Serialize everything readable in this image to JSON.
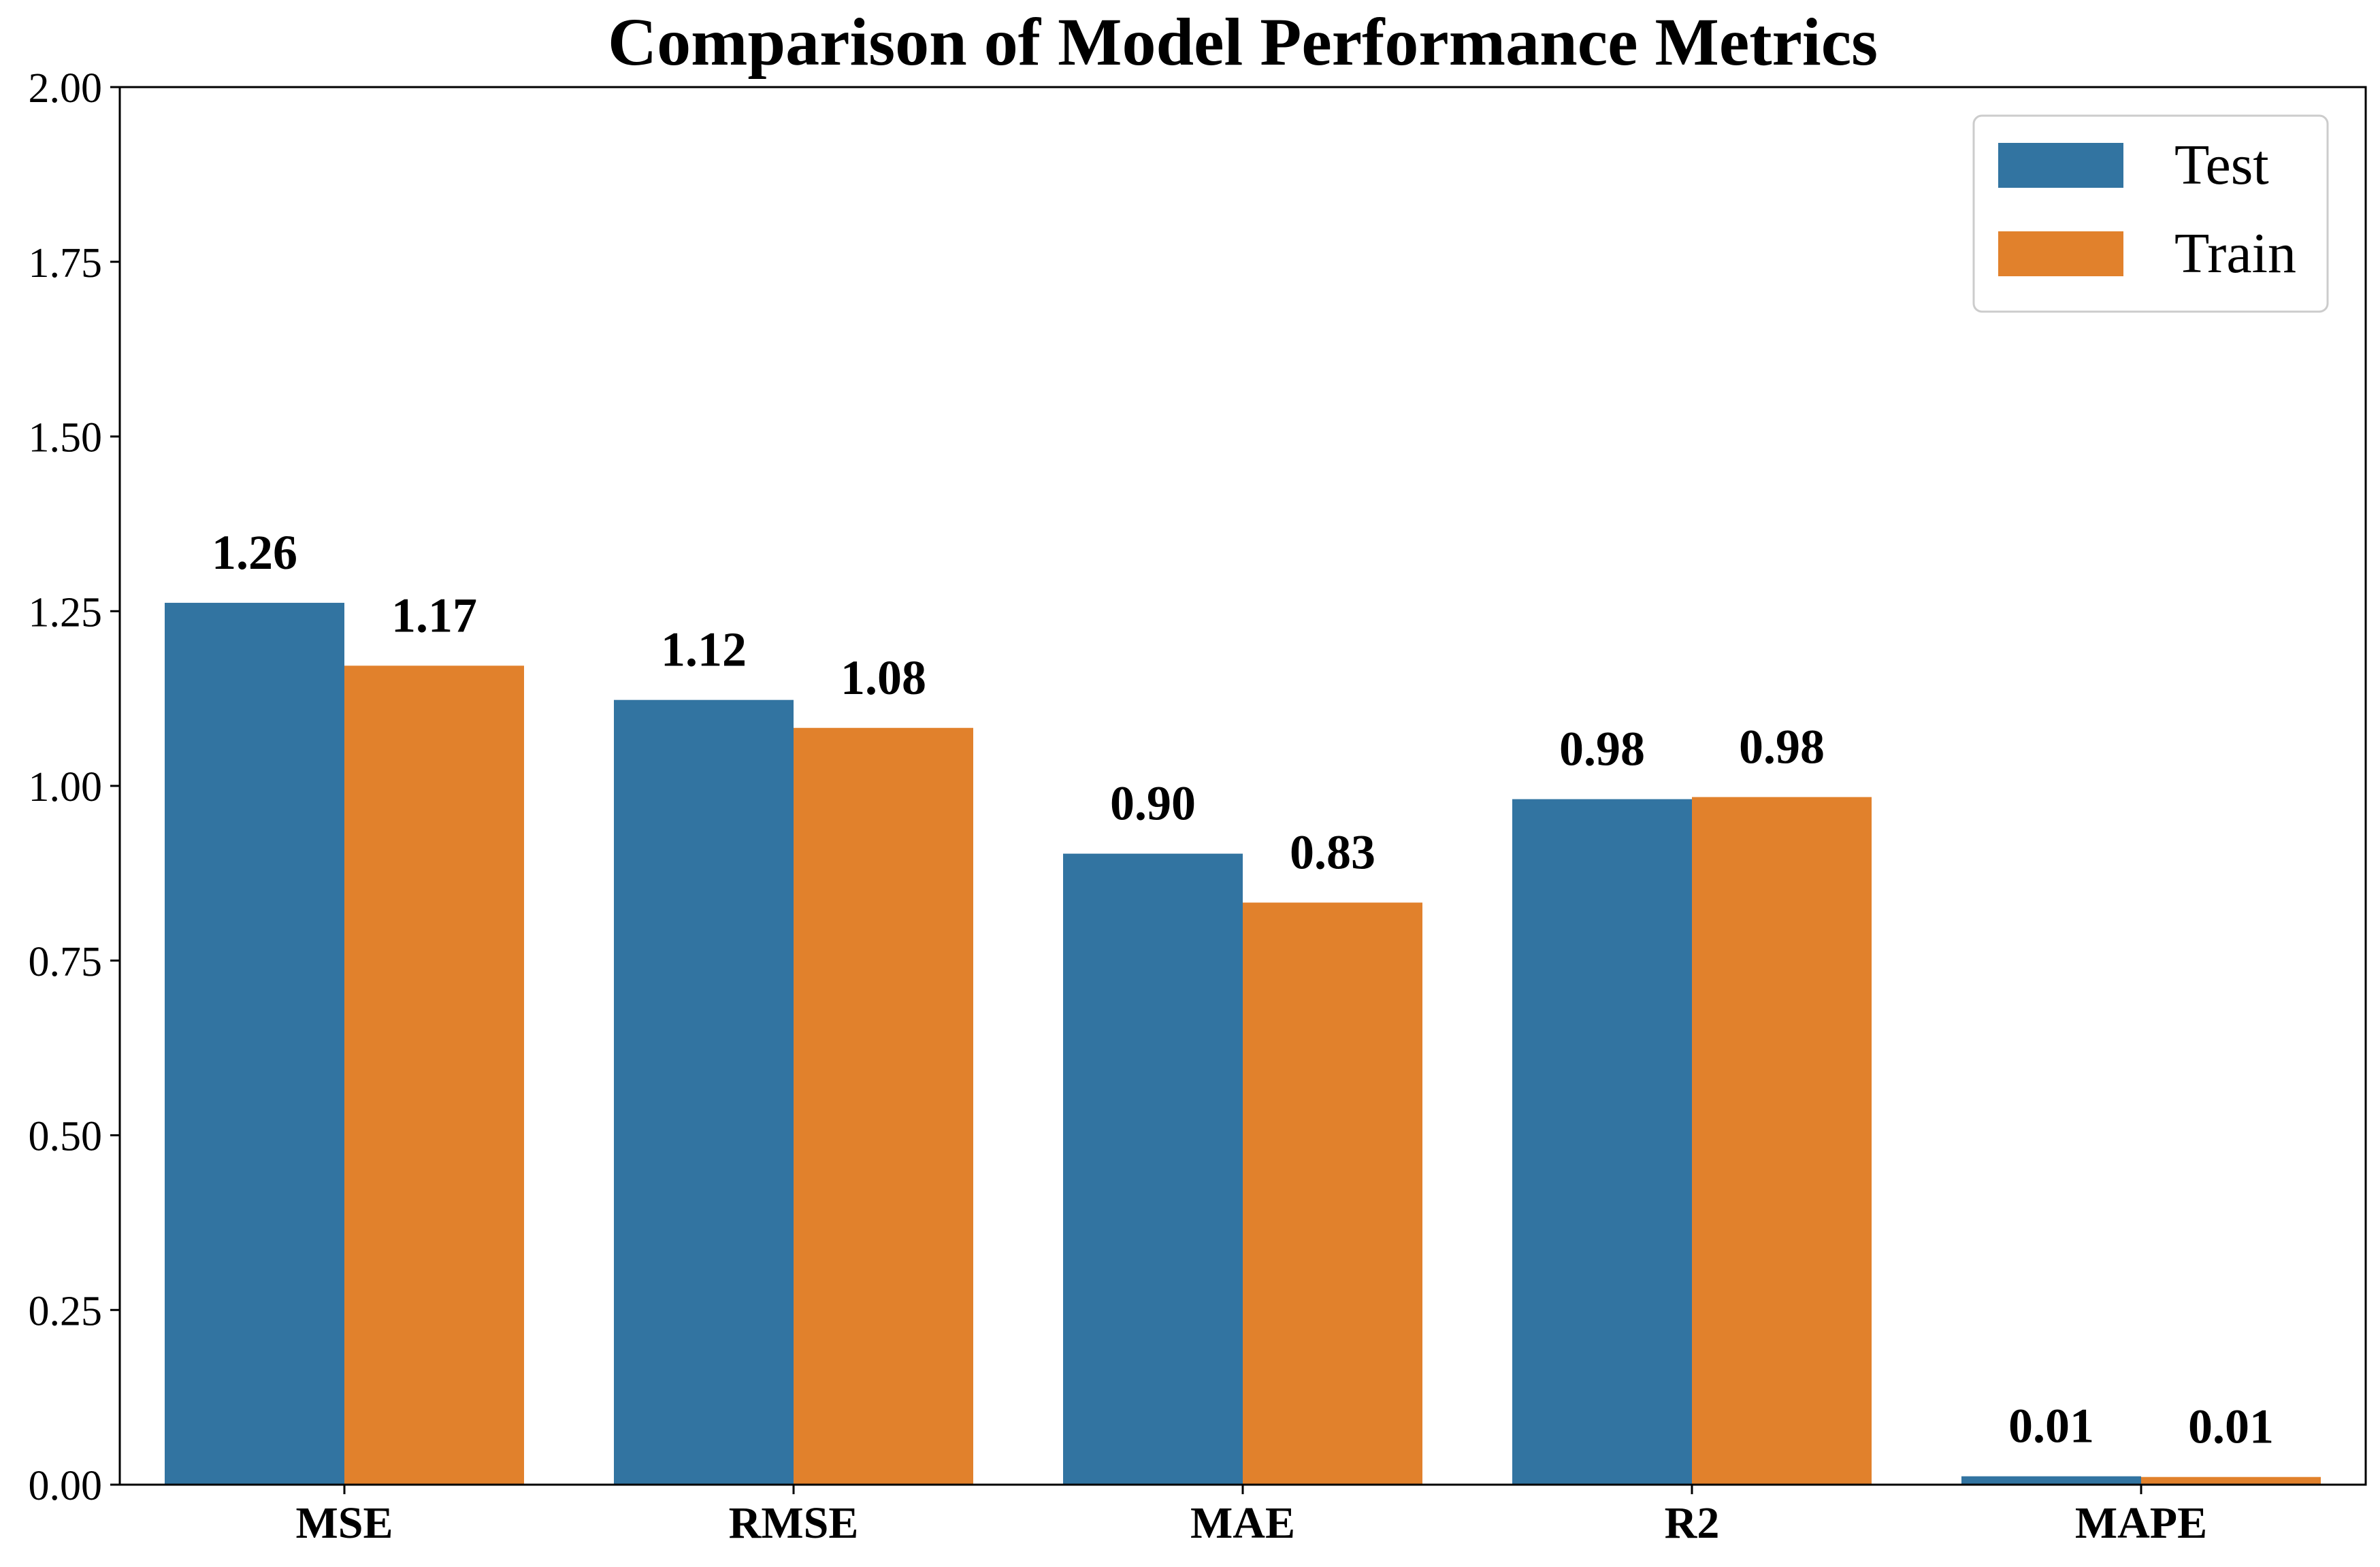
{
  "chart_data": {
    "type": "bar",
    "title": "Comparison of Model Performance Metrics",
    "xlabel": "",
    "ylabel": "",
    "categories": [
      "MSE",
      "RMSE",
      "MAE",
      "R2",
      "MAPE"
    ],
    "series": [
      {
        "name": "Test",
        "color": "#3274A1",
        "values": [
          1.262,
          1.123,
          0.903,
          0.981,
          0.012
        ],
        "labels": [
          "1.26",
          "1.12",
          "0.90",
          "0.98",
          "0.01"
        ]
      },
      {
        "name": "Train",
        "color": "#E1812C",
        "values": [
          1.172,
          1.083,
          0.833,
          0.984,
          0.011
        ],
        "labels": [
          "1.17",
          "1.08",
          "0.83",
          "0.98",
          "0.01"
        ]
      }
    ],
    "ylim": [
      0,
      2.0
    ],
    "yticks": [
      0.0,
      0.25,
      0.5,
      0.75,
      1.0,
      1.25,
      1.5,
      1.75,
      2.0
    ],
    "ytick_labels": [
      "0.00",
      "0.25",
      "0.50",
      "0.75",
      "1.00",
      "1.25",
      "1.50",
      "1.75",
      "2.00"
    ],
    "grid": false,
    "legend": {
      "placement": "top-right",
      "entries": [
        "Test",
        "Train"
      ]
    }
  }
}
